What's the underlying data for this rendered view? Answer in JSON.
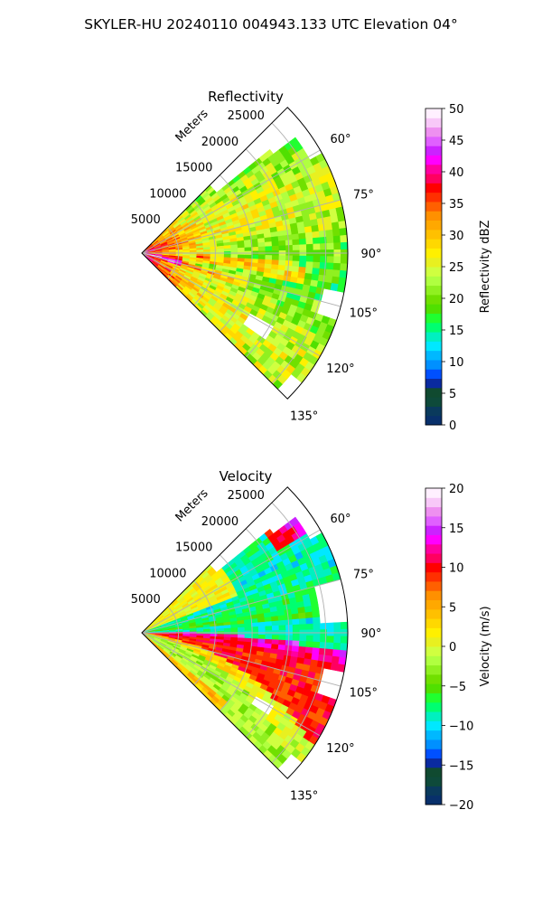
{
  "figure": {
    "suptitle": "SKYLER-HU  20240110  004943.133 UTC Elevation 04°"
  },
  "chart_data": [
    {
      "type": "heatmap",
      "projection": "polar-sector",
      "title": "Reflectivity",
      "range_label": "Meters",
      "range_ticks": [
        "5000",
        "10000",
        "15000",
        "20000",
        "25000"
      ],
      "range_tick_values": [
        5000,
        10000,
        15000,
        20000,
        25000
      ],
      "range_max": 28000,
      "azimuth_range_deg": [
        45,
        135
      ],
      "azimuth_ticks": [
        "60°",
        "75°",
        "90°",
        "105°",
        "120°",
        "135°"
      ],
      "azimuth_tick_values": [
        60,
        75,
        90,
        105,
        120,
        135
      ],
      "grid": true,
      "colorbar": {
        "label": "Reflectivity dBZ",
        "vmin": 0,
        "vmax": 50,
        "ticks": [
          "0",
          "5",
          "10",
          "15",
          "20",
          "25",
          "30",
          "35",
          "40",
          "45",
          "50"
        ],
        "tick_values": [
          0,
          5,
          10,
          15,
          20,
          25,
          30,
          35,
          40,
          45,
          50
        ],
        "colors": [
          "#08306b",
          "#0a3a5c",
          "#0e4a3a",
          "#104a30",
          "#0a2aa0",
          "#0050ff",
          "#0090ff",
          "#00b8ff",
          "#00e8ff",
          "#00f0c0",
          "#00ff70",
          "#20ff30",
          "#50e000",
          "#70e000",
          "#90f020",
          "#b0ff40",
          "#d0ff40",
          "#e8f020",
          "#fff000",
          "#ffd800",
          "#ffc000",
          "#ffa800",
          "#ff9000",
          "#ff6000",
          "#ff3000",
          "#ff0000",
          "#ff0060",
          "#ff00a0",
          "#ff00ff",
          "#cc22ff",
          "#e060ff",
          "#ee90f0",
          "#f8c8f8",
          "#fff0ff"
        ]
      },
      "field_description": "High reflectivity (25–40 dBZ) near radar; bright bands 35–40 dBZ along 90–100°; peak ~40 dBZ near origin; 20–30 dBZ across most of sector"
    },
    {
      "type": "heatmap",
      "projection": "polar-sector",
      "title": "Velocity",
      "range_label": "Meters",
      "range_ticks": [
        "5000",
        "10000",
        "15000",
        "20000",
        "25000"
      ],
      "range_tick_values": [
        5000,
        10000,
        15000,
        20000,
        25000
      ],
      "range_max": 28000,
      "azimuth_range_deg": [
        45,
        135
      ],
      "azimuth_ticks": [
        "60°",
        "75°",
        "90°",
        "105°",
        "120°",
        "135°"
      ],
      "azimuth_tick_values": [
        60,
        75,
        90,
        105,
        120,
        135
      ],
      "grid": true,
      "colorbar": {
        "label": "Velocity (m/s)",
        "vmin": -20,
        "vmax": 20,
        "ticks": [
          "−20",
          "−15",
          "−10",
          "−5",
          "0",
          "5",
          "10",
          "15",
          "20"
        ],
        "tick_values": [
          -20,
          -15,
          -10,
          -5,
          0,
          5,
          10,
          15,
          20
        ],
        "colors": [
          "#08306b",
          "#0a3a5c",
          "#0e4a3a",
          "#104a30",
          "#0a2aa0",
          "#0050ff",
          "#0090ff",
          "#00b8ff",
          "#00e8ff",
          "#00f0c0",
          "#00ff70",
          "#20ff30",
          "#50e000",
          "#70e000",
          "#90f020",
          "#b0ff40",
          "#d0ff40",
          "#e8f020",
          "#fff000",
          "#ffd800",
          "#ffc000",
          "#ffa800",
          "#ff9000",
          "#ff6000",
          "#ff3000",
          "#ff0000",
          "#ff0060",
          "#ff00a0",
          "#ff00ff",
          "#cc22ff",
          "#e060ff",
          "#ee90f0",
          "#f8c8f8",
          "#fff0ff"
        ]
      },
      "field_description": "Inbound (−10 to −5 m/s, green/cyan) north of ~88°; outbound (+5 to +15 m/s, orange/red/magenta) south of ~90° with sharp shear line; yellow near 0 m/s along the 105–120° flank"
    }
  ]
}
